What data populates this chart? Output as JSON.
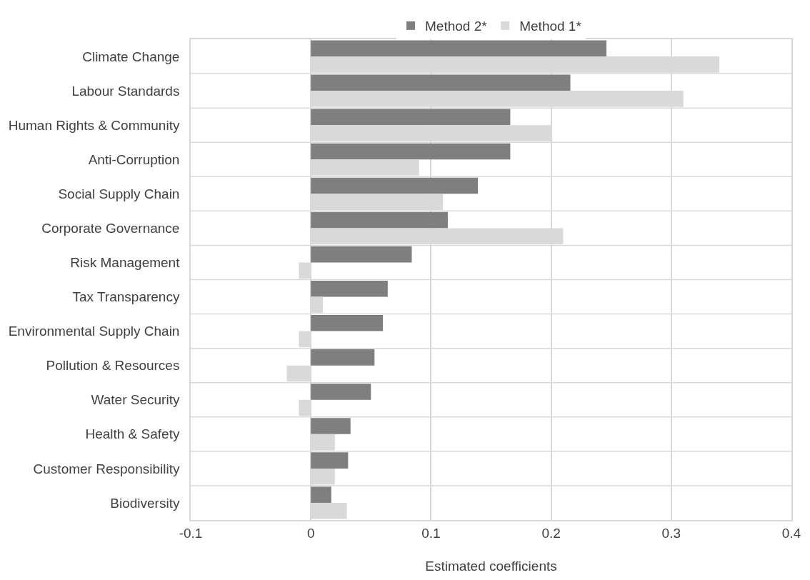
{
  "chart_data": {
    "type": "bar",
    "orientation": "horizontal",
    "xlabel": "Estimated coefficients",
    "categories": [
      "Climate Change",
      "Labour Standards",
      "Human Rights & Community",
      "Anti-Corruption",
      "Social Supply Chain",
      "Corporate Governance",
      "Risk Management",
      "Tax Transparency",
      "Environmental Supply Chain",
      "Pollution & Resources",
      "Water Security",
      "Health & Safety",
      "Customer Responsibility",
      "Biodiversity"
    ],
    "series": [
      {
        "name": "Method 2*",
        "color": "#7f7f7f",
        "values": [
          0.246,
          0.216,
          0.166,
          0.166,
          0.139,
          0.114,
          0.084,
          0.064,
          0.06,
          0.053,
          0.05,
          0.033,
          0.031,
          0.017
        ]
      },
      {
        "name": "Method 1*",
        "color": "#d9d9d9",
        "values": [
          0.34,
          0.31,
          0.2,
          0.09,
          0.11,
          0.21,
          -0.01,
          0.01,
          -0.01,
          -0.02,
          -0.01,
          0.02,
          0.02,
          0.03
        ]
      }
    ],
    "xlim": [
      -0.1,
      0.4
    ],
    "xticks": [
      -0.1,
      0,
      0.1,
      0.2,
      0.3,
      0.4
    ],
    "grid": true,
    "legend": "top"
  }
}
